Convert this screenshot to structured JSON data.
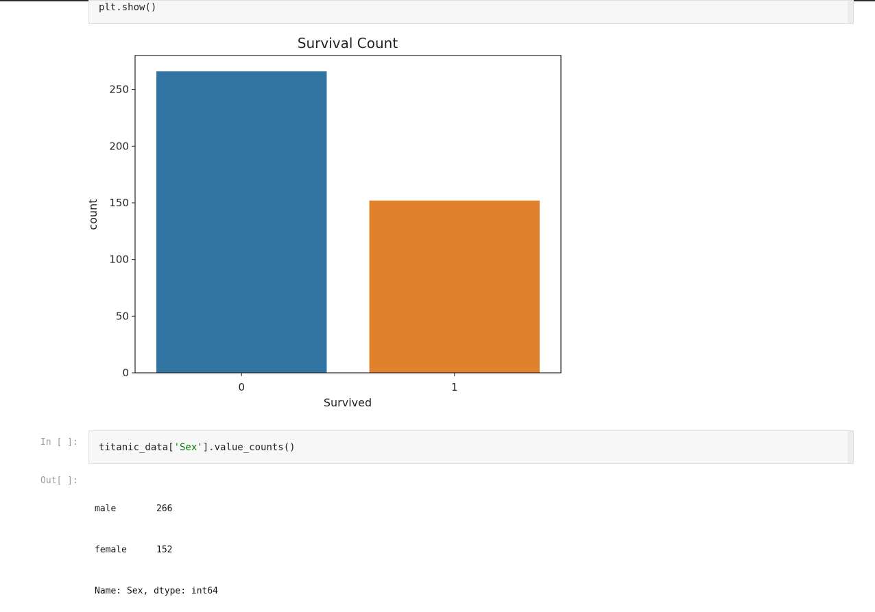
{
  "cells": {
    "prev_code": "plt.show()",
    "input": {
      "prompt": "In [ ]:",
      "code_prefix": "titanic_data[",
      "code_string": "'Sex'",
      "code_suffix": "].value_counts()"
    },
    "output": {
      "prompt": "Out[ ]:",
      "rows": [
        {
          "label": "male",
          "value": "266"
        },
        {
          "label": "female",
          "value": "152"
        }
      ],
      "footer": "Name: Sex, dtype: int64"
    }
  },
  "chart_data": {
    "type": "bar",
    "title": "Survival Count",
    "xlabel": "Survived",
    "ylabel": "count",
    "categories": [
      "0",
      "1"
    ],
    "values": [
      266,
      152
    ],
    "colors": [
      "#3274a1",
      "#e1812c"
    ],
    "ylim": [
      0,
      280
    ],
    "yticks": [
      0,
      50,
      100,
      150,
      200,
      250
    ],
    "grid": false
  }
}
